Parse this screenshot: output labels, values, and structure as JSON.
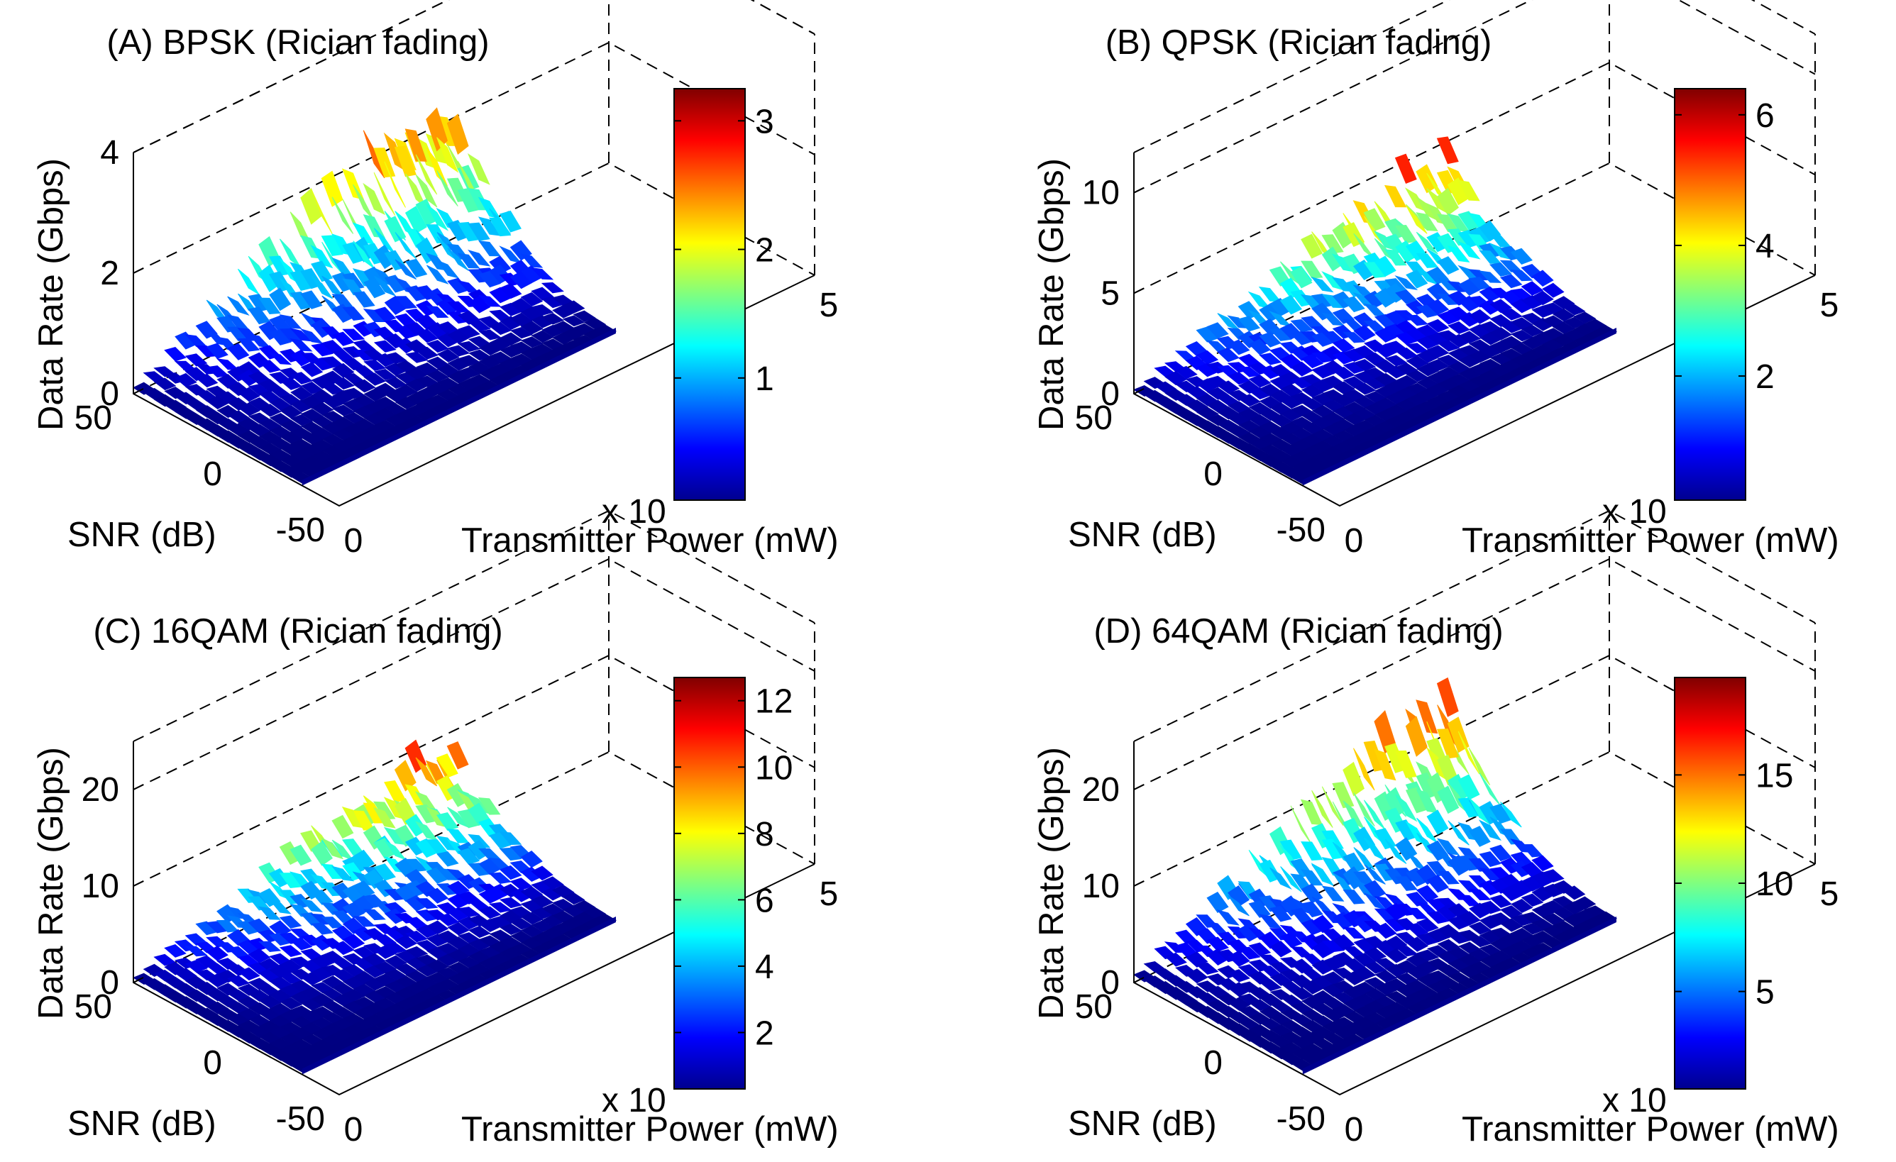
{
  "figure": {
    "description_free": true
  },
  "colormap": "jet",
  "chart_data": [
    {
      "id": "A",
      "type": "surface",
      "title": "(A) BPSK (Rician fading)",
      "xlabel": "Transmitter Power (mW)",
      "ylabel": "SNR (dB)",
      "zlabel": "Data Rate (Gbps)",
      "x_ticks": [
        "0",
        "5"
      ],
      "x_exponent_text": "x 10",
      "y_ticks": [
        "50",
        "0",
        "-50"
      ],
      "z_ticks": [
        "0",
        "2",
        "4"
      ],
      "zlim": [
        0,
        4
      ],
      "x_range": [
        0,
        5
      ],
      "y_range": [
        -50,
        50
      ],
      "colorbar_ticks": [
        "1",
        "2",
        "3"
      ],
      "colorbar_values": [
        1,
        2,
        3
      ],
      "colorbar_range": [
        0.05,
        3.25
      ],
      "peak": 3.25
    },
    {
      "id": "B",
      "type": "surface",
      "title": "(B) QPSK (Rician fading)",
      "xlabel": "Transmitter Power (mW)",
      "ylabel": "SNR (dB)",
      "zlabel": "Data Rate (Gbps)",
      "x_ticks": [
        "0",
        "5"
      ],
      "x_exponent_text": "x 10",
      "y_ticks": [
        "50",
        "0",
        "-50"
      ],
      "z_ticks": [
        "0",
        "5",
        "10"
      ],
      "zlim": [
        0,
        12
      ],
      "x_range": [
        0,
        5
      ],
      "y_range": [
        -50,
        50
      ],
      "colorbar_ticks": [
        "2",
        "4",
        "6"
      ],
      "colorbar_values": [
        2,
        4,
        6
      ],
      "colorbar_range": [
        0.1,
        6.4
      ],
      "peak": 6.4
    },
    {
      "id": "C",
      "type": "surface",
      "title": "(C) 16QAM (Rician fading)",
      "xlabel": "Transmitter Power (mW)",
      "ylabel": "SNR (dB)",
      "zlabel": "Data Rate (Gbps)",
      "x_ticks": [
        "0",
        "5"
      ],
      "x_exponent_text": "x 10",
      "y_ticks": [
        "50",
        "0",
        "-50"
      ],
      "z_ticks": [
        "0",
        "10",
        "20"
      ],
      "zlim": [
        0,
        25
      ],
      "x_range": [
        0,
        5
      ],
      "y_range": [
        -50,
        50
      ],
      "colorbar_ticks": [
        "2",
        "4",
        "6",
        "8",
        "10",
        "12"
      ],
      "colorbar_values": [
        2,
        4,
        6,
        8,
        10,
        12
      ],
      "colorbar_range": [
        0.3,
        12.7
      ],
      "peak": 12.7
    },
    {
      "id": "D",
      "type": "surface",
      "title": "(D) 64QAM (Rician fading)",
      "xlabel": "Transmitter Power (mW)",
      "ylabel": "SNR (dB)",
      "zlabel": "Data Rate (Gbps)",
      "x_ticks": [
        "0",
        "5"
      ],
      "x_exponent_text": "x 10",
      "y_ticks": [
        "50",
        "0",
        "-50"
      ],
      "z_ticks": [
        "0",
        "10",
        "20"
      ],
      "zlim": [
        0,
        25
      ],
      "x_range": [
        0,
        5
      ],
      "y_range": [
        -50,
        50
      ],
      "colorbar_ticks": [
        "5",
        "10",
        "15"
      ],
      "colorbar_values": [
        5,
        10,
        15
      ],
      "colorbar_range": [
        0.5,
        19.5
      ],
      "peak": 19.5
    }
  ]
}
